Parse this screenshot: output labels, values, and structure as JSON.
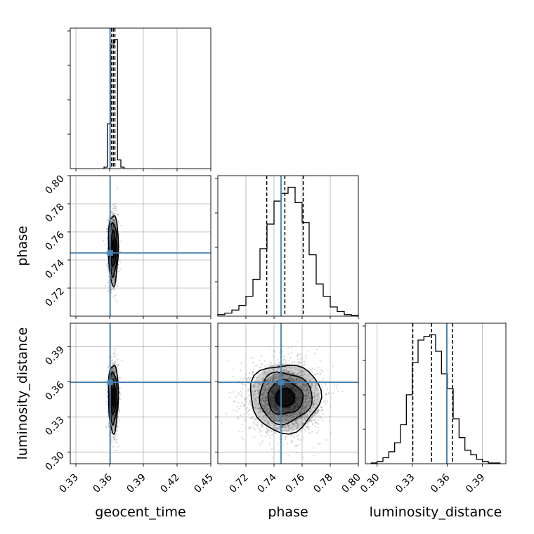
{
  "chart_data": {
    "type": "corner",
    "parameters": [
      "geocent_time",
      "phase",
      "luminosity_distance"
    ],
    "truths": {
      "geocent_time": 0.3605,
      "phase": 0.745,
      "luminosity_distance": 0.3595
    },
    "quantiles": {
      "geocent_time": [
        0.3617,
        0.3633,
        0.3647
      ],
      "phase": [
        0.7348,
        0.7477,
        0.7608
      ],
      "luminosity_distance": [
        0.3305,
        0.3465,
        0.3645
      ]
    },
    "axes": {
      "geocent_time": {
        "label": "geocent_time",
        "range": [
          0.325,
          0.45
        ],
        "ticks": [
          0.33,
          0.36,
          0.39,
          0.42,
          0.45
        ],
        "tick_labels": [
          "0.33",
          "0.36",
          "0.39",
          "0.42",
          "0.45"
        ]
      },
      "phase": {
        "label": "phase",
        "range": [
          0.7,
          0.8
        ],
        "ticks": [
          0.72,
          0.74,
          0.76,
          0.78,
          0.8
        ],
        "tick_labels": [
          "0.72",
          "0.74",
          "0.76",
          "0.78",
          "0.80"
        ]
      },
      "luminosity_distance": {
        "label": "luminosity_distance",
        "range": [
          0.29,
          0.41
        ],
        "ticks": [
          0.3,
          0.33,
          0.36,
          0.39
        ],
        "tick_labels": [
          "0.30",
          "0.33",
          "0.36",
          "0.39"
        ]
      }
    },
    "histograms": {
      "geocent_time": {
        "bin_edges": [
          0.355,
          0.358,
          0.361,
          0.364,
          0.367,
          0.37,
          0.373
        ],
        "counts": [
          2,
          62,
          172,
          178,
          12,
          2
        ]
      },
      "phase": {
        "bin_edges": [
          0.7,
          0.705,
          0.71,
          0.715,
          0.72,
          0.725,
          0.73,
          0.735,
          0.74,
          0.745,
          0.75,
          0.755,
          0.76,
          0.765,
          0.77,
          0.775,
          0.78,
          0.785,
          0.79,
          0.795,
          0.8
        ],
        "counts": [
          2,
          4,
          8,
          14,
          26,
          48,
          88,
          120,
          150,
          160,
          168,
          148,
          122,
          80,
          42,
          26,
          12,
          6,
          2,
          1
        ]
      },
      "luminosity_distance": {
        "bin_edges": [
          0.295,
          0.3,
          0.305,
          0.31,
          0.315,
          0.32,
          0.325,
          0.33,
          0.335,
          0.34,
          0.345,
          0.35,
          0.355,
          0.36,
          0.365,
          0.37,
          0.375,
          0.38,
          0.385,
          0.39,
          0.395,
          0.4,
          0.405
        ],
        "counts": [
          1,
          3,
          8,
          16,
          28,
          52,
          92,
          135,
          165,
          170,
          172,
          150,
          120,
          100,
          60,
          35,
          18,
          12,
          6,
          3,
          1,
          1
        ]
      }
    },
    "grid": true,
    "colors": {
      "truth": "#4682b4",
      "line": "#000000",
      "grid": "#b0b0b0",
      "points": "#555555"
    }
  }
}
